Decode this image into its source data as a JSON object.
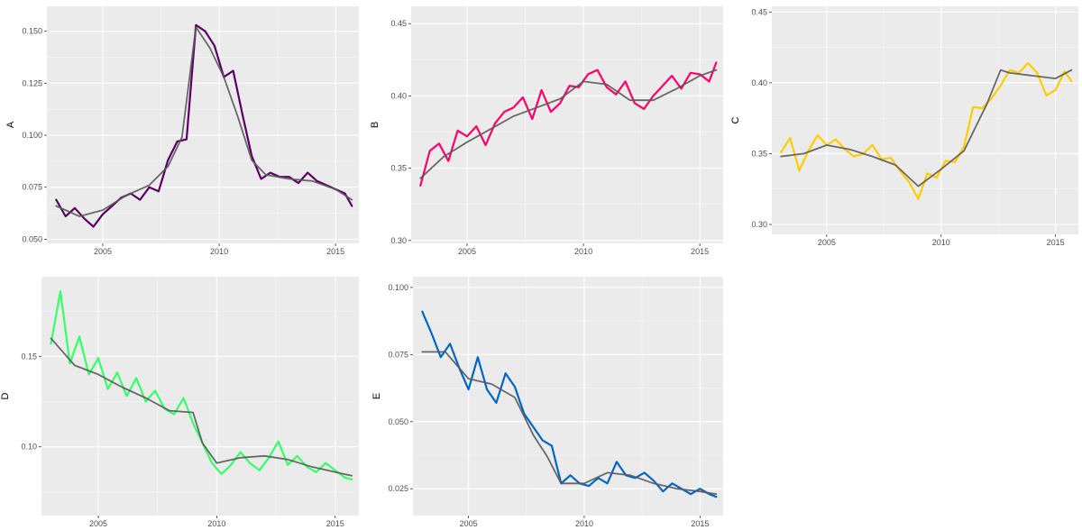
{
  "chart_data": [
    {
      "type": "line",
      "ylabel": "A",
      "xlim": [
        2002.6,
        2016.0
      ],
      "ylim": [
        0.048,
        0.162
      ],
      "xticks": [
        2005,
        2010,
        2015
      ],
      "yticks": [
        0.05,
        0.075,
        0.1,
        0.125,
        0.15
      ],
      "ytick_labels": [
        "0.050",
        "0.075",
        "0.100",
        "0.125",
        "0.150"
      ],
      "xticks_dates": [
        "2005",
        "2010",
        "2015"
      ],
      "grid": true,
      "colors": {
        "raw": "#5C0066",
        "smooth": "#5A5A5A"
      },
      "series": [
        {
          "role": "raw",
          "x": [
            2003.0,
            2003.4,
            2003.8,
            2004.2,
            2004.6,
            2005.0,
            2005.4,
            2005.8,
            2006.2,
            2006.6,
            2007.0,
            2007.4,
            2007.8,
            2008.2,
            2008.6,
            2009.0,
            2009.4,
            2009.8,
            2010.2,
            2010.6,
            2011.0,
            2011.4,
            2011.8,
            2012.2,
            2012.6,
            2013.0,
            2013.4,
            2013.8,
            2014.2,
            2014.6,
            2015.0,
            2015.4,
            2015.7
          ],
          "y": [
            0.069,
            0.061,
            0.065,
            0.06,
            0.056,
            0.062,
            0.066,
            0.07,
            0.072,
            0.069,
            0.075,
            0.073,
            0.088,
            0.097,
            0.098,
            0.153,
            0.15,
            0.143,
            0.128,
            0.131,
            0.11,
            0.09,
            0.079,
            0.082,
            0.08,
            0.08,
            0.077,
            0.082,
            0.078,
            0.076,
            0.074,
            0.072,
            0.066
          ]
        },
        {
          "role": "smooth",
          "x": [
            2003.0,
            2004.0,
            2005.0,
            2006.0,
            2007.0,
            2007.8,
            2008.4,
            2009.0,
            2009.6,
            2010.2,
            2010.8,
            2011.4,
            2012.0,
            2013.0,
            2014.0,
            2015.0,
            2015.7
          ],
          "y": [
            0.066,
            0.061,
            0.064,
            0.071,
            0.076,
            0.085,
            0.099,
            0.152,
            0.142,
            0.128,
            0.109,
            0.088,
            0.081,
            0.079,
            0.078,
            0.074,
            0.069
          ]
        }
      ]
    },
    {
      "type": "line",
      "ylabel": "B",
      "xlim": [
        2002.6,
        2016.0
      ],
      "ylim": [
        0.298,
        0.462
      ],
      "xticks": [
        2005,
        2010,
        2015
      ],
      "yticks": [
        0.3,
        0.35,
        0.4,
        0.45
      ],
      "ytick_labels": [
        "0.30",
        "0.35",
        "0.40",
        "0.45"
      ],
      "xticks_dates": [
        "2005",
        "2010",
        "2015"
      ],
      "grid": true,
      "colors": {
        "raw": "#FF0066",
        "smooth": "#5A5A5A"
      },
      "series": [
        {
          "role": "raw",
          "x": [
            2003.0,
            2003.4,
            2003.8,
            2004.2,
            2004.6,
            2005.0,
            2005.4,
            2005.8,
            2006.2,
            2006.6,
            2007.0,
            2007.4,
            2007.8,
            2008.2,
            2008.6,
            2009.0,
            2009.4,
            2009.8,
            2010.2,
            2010.6,
            2011.0,
            2011.4,
            2011.8,
            2012.2,
            2012.6,
            2013.0,
            2013.4,
            2013.8,
            2014.2,
            2014.6,
            2015.0,
            2015.4,
            2015.7
          ],
          "y": [
            0.338,
            0.362,
            0.367,
            0.355,
            0.376,
            0.372,
            0.379,
            0.366,
            0.381,
            0.389,
            0.392,
            0.399,
            0.384,
            0.404,
            0.389,
            0.395,
            0.407,
            0.406,
            0.415,
            0.418,
            0.406,
            0.401,
            0.41,
            0.395,
            0.391,
            0.4,
            0.407,
            0.414,
            0.405,
            0.416,
            0.415,
            0.41,
            0.423
          ]
        },
        {
          "role": "smooth",
          "x": [
            2003.0,
            2004.0,
            2005.0,
            2006.0,
            2007.0,
            2008.0,
            2009.0,
            2010.0,
            2011.0,
            2012.0,
            2013.0,
            2014.0,
            2015.0,
            2015.7
          ],
          "y": [
            0.343,
            0.358,
            0.368,
            0.377,
            0.386,
            0.392,
            0.398,
            0.41,
            0.408,
            0.397,
            0.397,
            0.405,
            0.414,
            0.418
          ]
        }
      ]
    },
    {
      "type": "line",
      "ylabel": "C",
      "xlim": [
        2002.6,
        2016.0
      ],
      "ylim": [
        0.293,
        0.454
      ],
      "xticks": [
        2005,
        2010,
        2015
      ],
      "yticks": [
        0.3,
        0.35,
        0.4,
        0.45
      ],
      "ytick_labels": [
        "0.30",
        "0.35",
        "0.40",
        "0.45"
      ],
      "xticks_dates": [
        "2005",
        "2010",
        "2015"
      ],
      "grid": true,
      "colors": {
        "raw": "#FFCC00",
        "smooth": "#5A5A5A"
      },
      "series": [
        {
          "role": "raw",
          "x": [
            2003.0,
            2003.4,
            2003.8,
            2004.2,
            2004.6,
            2005.0,
            2005.4,
            2005.8,
            2006.2,
            2006.6,
            2007.0,
            2007.4,
            2007.8,
            2008.2,
            2008.6,
            2009.0,
            2009.4,
            2009.8,
            2010.2,
            2010.6,
            2011.0,
            2011.4,
            2011.8,
            2012.2,
            2012.6,
            2013.0,
            2013.4,
            2013.8,
            2014.2,
            2014.6,
            2015.0,
            2015.4,
            2015.7
          ],
          "y": [
            0.351,
            0.361,
            0.338,
            0.352,
            0.363,
            0.356,
            0.36,
            0.353,
            0.348,
            0.35,
            0.356,
            0.346,
            0.347,
            0.338,
            0.33,
            0.318,
            0.336,
            0.333,
            0.345,
            0.344,
            0.355,
            0.383,
            0.382,
            0.389,
            0.398,
            0.409,
            0.407,
            0.414,
            0.407,
            0.391,
            0.395,
            0.408,
            0.401
          ]
        },
        {
          "role": "smooth",
          "x": [
            2003.0,
            2004.0,
            2005.0,
            2006.0,
            2007.0,
            2008.0,
            2009.0,
            2010.0,
            2011.0,
            2012.0,
            2012.6,
            2013.0,
            2014.0,
            2015.0,
            2015.7
          ],
          "y": [
            0.348,
            0.35,
            0.356,
            0.353,
            0.348,
            0.342,
            0.327,
            0.339,
            0.352,
            0.385,
            0.409,
            0.407,
            0.405,
            0.403,
            0.409
          ]
        }
      ]
    },
    {
      "type": "line",
      "ylabel": "D",
      "xlim": [
        2002.6,
        2016.0
      ],
      "ylim": [
        0.062,
        0.194
      ],
      "xticks": [
        2005,
        2010,
        2015
      ],
      "yticks": [
        0.1,
        0.15
      ],
      "ytick_labels": [
        "0.10",
        "0.15"
      ],
      "xticks_dates": [
        "2005",
        "2010",
        "2015"
      ],
      "grid": true,
      "colors": {
        "raw": "#33FF66",
        "smooth": "#5A5A5A"
      },
      "series": [
        {
          "role": "raw",
          "x": [
            2003.0,
            2003.4,
            2003.8,
            2004.2,
            2004.6,
            2005.0,
            2005.4,
            2005.8,
            2006.2,
            2006.6,
            2007.0,
            2007.4,
            2007.8,
            2008.2,
            2008.6,
            2009.0,
            2009.4,
            2009.8,
            2010.2,
            2010.6,
            2011.0,
            2011.4,
            2011.8,
            2012.2,
            2012.6,
            2013.0,
            2013.4,
            2013.8,
            2014.2,
            2014.6,
            2015.0,
            2015.4,
            2015.7
          ],
          "y": [
            0.157,
            0.186,
            0.146,
            0.161,
            0.14,
            0.149,
            0.132,
            0.141,
            0.128,
            0.138,
            0.125,
            0.131,
            0.121,
            0.118,
            0.127,
            0.113,
            0.102,
            0.091,
            0.085,
            0.09,
            0.097,
            0.091,
            0.087,
            0.094,
            0.103,
            0.09,
            0.095,
            0.089,
            0.086,
            0.091,
            0.087,
            0.083,
            0.082
          ]
        },
        {
          "role": "smooth",
          "x": [
            2003.0,
            2004.0,
            2005.0,
            2006.0,
            2007.0,
            2008.0,
            2009.0,
            2009.4,
            2010.0,
            2011.0,
            2012.0,
            2013.0,
            2014.0,
            2015.0,
            2015.7
          ],
          "y": [
            0.16,
            0.145,
            0.14,
            0.133,
            0.127,
            0.12,
            0.119,
            0.102,
            0.091,
            0.094,
            0.095,
            0.093,
            0.089,
            0.086,
            0.084
          ]
        }
      ]
    },
    {
      "type": "line",
      "ylabel": "E",
      "xlim": [
        2002.6,
        2016.0
      ],
      "ylim": [
        0.015,
        0.104
      ],
      "xticks": [
        2005,
        2010,
        2015
      ],
      "yticks": [
        0.025,
        0.05,
        0.075,
        0.1
      ],
      "ytick_labels": [
        "0.025",
        "0.050",
        "0.075",
        "0.100"
      ],
      "xticks_dates": [
        "2005",
        "2010",
        "2015"
      ],
      "grid": true,
      "colors": {
        "raw": "#0066CC",
        "smooth": "#5A5A5A"
      },
      "series": [
        {
          "role": "raw",
          "x": [
            2003.0,
            2003.4,
            2003.8,
            2004.2,
            2004.6,
            2005.0,
            2005.4,
            2005.8,
            2006.2,
            2006.6,
            2007.0,
            2007.4,
            2007.8,
            2008.2,
            2008.6,
            2009.0,
            2009.4,
            2009.8,
            2010.2,
            2010.6,
            2011.0,
            2011.4,
            2011.8,
            2012.2,
            2012.6,
            2013.0,
            2013.4,
            2013.8,
            2014.2,
            2014.6,
            2015.0,
            2015.4,
            2015.7
          ],
          "y": [
            0.091,
            0.083,
            0.074,
            0.079,
            0.07,
            0.062,
            0.074,
            0.062,
            0.057,
            0.068,
            0.063,
            0.053,
            0.048,
            0.043,
            0.041,
            0.027,
            0.03,
            0.027,
            0.026,
            0.029,
            0.027,
            0.035,
            0.03,
            0.029,
            0.031,
            0.028,
            0.024,
            0.027,
            0.025,
            0.023,
            0.025,
            0.023,
            0.022
          ]
        },
        {
          "role": "smooth",
          "x": [
            2003.0,
            2004.0,
            2005.0,
            2006.0,
            2007.0,
            2007.8,
            2008.4,
            2009.0,
            2010.0,
            2011.0,
            2012.0,
            2013.0,
            2014.0,
            2015.0,
            2015.7
          ],
          "y": [
            0.076,
            0.076,
            0.066,
            0.064,
            0.059,
            0.045,
            0.037,
            0.027,
            0.027,
            0.031,
            0.03,
            0.027,
            0.025,
            0.024,
            0.023
          ]
        }
      ]
    }
  ]
}
